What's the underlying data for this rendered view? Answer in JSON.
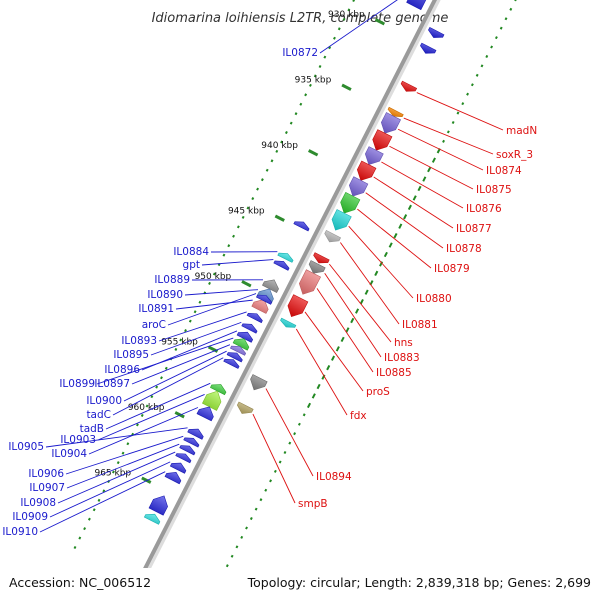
{
  "title": "Idiomarina loihiensis L2TR, complete genome",
  "footer": {
    "accession": "Accession: NC_006512",
    "summary": "Topology: circular; Length: 2,839,318 bp; Genes: 2,699"
  },
  "colors": {
    "forward_label": "#dd1111",
    "reverse_label": "#1a1acc",
    "backbone": "#9a9a9a",
    "tick": "#2e8b2e",
    "gc_dots": "#228822"
  },
  "chart_data": {
    "type": "genome-map",
    "units": "kbp",
    "ticks": [
      {
        "kbp": 930,
        "label": "930 kbp"
      },
      {
        "kbp": 935,
        "label": "935 kbp"
      },
      {
        "kbp": 940,
        "label": "940 kbp"
      },
      {
        "kbp": 945,
        "label": "945 kbp"
      },
      {
        "kbp": 950,
        "label": "950 kbp"
      },
      {
        "kbp": 955,
        "label": "955 kbp"
      },
      {
        "kbp": 960,
        "label": "960 kbp"
      },
      {
        "kbp": 965,
        "label": "965 kbp"
      }
    ],
    "forward_genes": [
      {
        "label": "madN",
        "start": 932.9,
        "end": 933.4,
        "color": "#ee1111"
      },
      {
        "label": "soxR_3",
        "start": 934.9,
        "end": 935.3,
        "color": "#ff8800"
      },
      {
        "label": "IL0874",
        "start": 935.3,
        "end": 936.6,
        "color": "#7a66dd"
      },
      {
        "label": "IL0875",
        "start": 936.6,
        "end": 937.9,
        "color": "#ee1111"
      },
      {
        "label": "IL0876",
        "start": 937.9,
        "end": 939.0,
        "color": "#7a66dd"
      },
      {
        "label": "IL0877",
        "start": 939.0,
        "end": 940.2,
        "color": "#ee1111"
      },
      {
        "label": "IL0878",
        "start": 940.2,
        "end": 941.4,
        "color": "#7a66dd"
      },
      {
        "label": "IL0879",
        "start": 941.4,
        "end": 942.7,
        "color": "#33cc33"
      },
      {
        "label": "IL0880",
        "start": 942.7,
        "end": 944.0,
        "color": "#22dddd"
      },
      {
        "label": "IL0881",
        "start": 944.3,
        "end": 944.9,
        "color": "#bbbbbb"
      },
      {
        "label": "hns",
        "start": 946.0,
        "end": 946.5,
        "color": "#ee1111"
      },
      {
        "label": "IL0883",
        "start": 946.6,
        "end": 947.3,
        "color": "#888888"
      },
      {
        "label": "IL0885",
        "start": 947.3,
        "end": 948.9,
        "color": "#ee7777"
      },
      {
        "label": "proS",
        "start": 949.2,
        "end": 950.6,
        "color": "#ee1111"
      },
      {
        "label": "fdx",
        "start": 951.0,
        "end": 951.4,
        "color": "#22dddd"
      },
      {
        "label": "IL0894",
        "start": 955.3,
        "end": 956.2,
        "color": "#888888"
      },
      {
        "label": "smpB",
        "start": 957.4,
        "end": 958.0,
        "color": "#bbaa66"
      }
    ],
    "reverse_genes": [
      {
        "label": "IL0872",
        "start": 926.4,
        "end": 928.0,
        "color": "#2222dd"
      },
      {
        "label": "IL0884",
        "start": 946.9,
        "end": 947.3,
        "color": "#22dddd"
      },
      {
        "label": "gpt",
        "start": 947.5,
        "end": 947.9,
        "color": "#2222dd"
      },
      {
        "label": "IL0889",
        "start": 948.9,
        "end": 949.6,
        "color": "#888888"
      },
      {
        "label": "IL0890",
        "start": 949.6,
        "end": 950.4,
        "color": "#5588cc"
      },
      {
        "label": "IL0891",
        "start": 950.4,
        "end": 951.2,
        "color": "#ee7777"
      },
      {
        "label": "aroC",
        "start": 950.1,
        "end": 950.5,
        "color": "#2222dd"
      },
      {
        "label": "IL0893",
        "start": 951.5,
        "end": 951.9,
        "color": "#2222dd"
      },
      {
        "label": "IL0895",
        "start": 952.3,
        "end": 952.7,
        "color": "#2222dd"
      },
      {
        "label": "IL0896",
        "start": 952.9,
        "end": 953.4,
        "color": "#2222dd"
      },
      {
        "label": "IL0899",
        "start": 953.4,
        "end": 954.0,
        "color": "#33cc33"
      },
      {
        "label": "IL0897",
        "start": 954.0,
        "end": 954.4,
        "color": "#7a66dd"
      },
      {
        "label": "IL0900",
        "start": 954.5,
        "end": 954.9,
        "color": "#2222dd"
      },
      {
        "label": "tadC",
        "start": 955.0,
        "end": 955.4,
        "color": "#2222dd"
      },
      {
        "label": "tadB",
        "start": 956.9,
        "end": 957.4,
        "color": "#33cc33"
      },
      {
        "label": "IL0903",
        "start": 957.4,
        "end": 958.6,
        "color": "#99ee33"
      },
      {
        "label": "IL0904",
        "start": 958.6,
        "end": 959.4,
        "color": "#2222dd"
      },
      {
        "label": "IL0905",
        "start": 960.3,
        "end": 960.8,
        "color": "#2222dd"
      },
      {
        "label": "IL0906",
        "start": 961.0,
        "end": 961.4,
        "color": "#2222dd"
      },
      {
        "label": "IL0907",
        "start": 961.6,
        "end": 962.0,
        "color": "#2222dd"
      },
      {
        "label": "IL0908",
        "start": 962.2,
        "end": 962.6,
        "color": "#2222dd"
      },
      {
        "label": "IL0909",
        "start": 962.9,
        "end": 963.4,
        "color": "#2222dd"
      },
      {
        "label": "IL0910",
        "start": 963.6,
        "end": 964.2,
        "color": "#2222dd"
      }
    ],
    "unlabeled_forward": [
      {
        "start": 924.0,
        "end": 924.8,
        "color": "#2222dd"
      },
      {
        "start": 924.8,
        "end": 925.9,
        "color": "#7a66dd"
      },
      {
        "start": 925.9,
        "end": 926.4,
        "color": "#2222dd"
      },
      {
        "start": 928.8,
        "end": 929.3,
        "color": "#2222dd"
      },
      {
        "start": 930.0,
        "end": 930.5,
        "color": "#2222dd"
      }
    ],
    "unlabeled_reverse": [
      {
        "start": 944.5,
        "end": 944.9,
        "color": "#2222dd"
      },
      {
        "start": 965.4,
        "end": 966.6,
        "color": "#2222dd"
      },
      {
        "start": 966.8,
        "end": 967.3,
        "color": "#22dddd"
      }
    ]
  }
}
